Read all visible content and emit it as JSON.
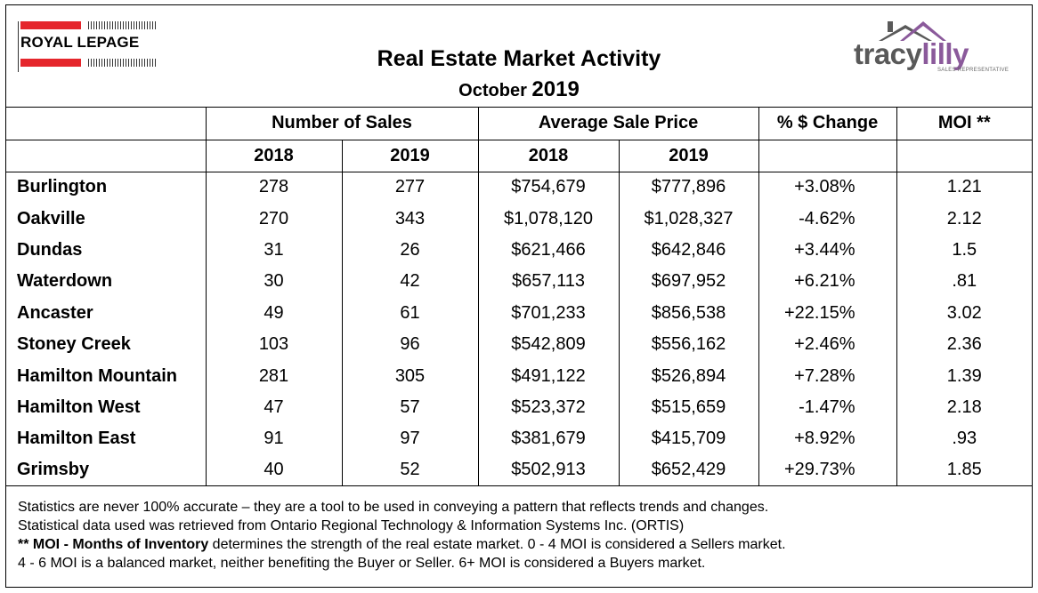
{
  "header": {
    "title": "Real Estate Market Activity",
    "month": "October",
    "year": "2019"
  },
  "logos": {
    "royal_lepage": {
      "text": "ROYAL LEPAGE",
      "color": "#e5262c"
    },
    "tracylilly": {
      "name_part1": "tracy",
      "name_part2": "lilly",
      "tagline": "SALES REPRESENTATIVE",
      "accent": "#8b5a9b",
      "gray": "#595959"
    }
  },
  "table": {
    "group_headers": {
      "sales": "Number of Sales",
      "price": "Average Sale Price",
      "change": "% $ Change",
      "moi": "MOI **"
    },
    "year_headers": [
      "2018",
      "2019",
      "2018",
      "2019"
    ],
    "rows": [
      {
        "area": "Burlington",
        "sales_2018": "278",
        "sales_2019": "277",
        "price_2018": "$754,679",
        "price_2019": "$777,896",
        "change": "+3.08%",
        "moi": "1.21"
      },
      {
        "area": "Oakville",
        "sales_2018": "270",
        "sales_2019": "343",
        "price_2018": "$1,078,120",
        "price_2019": "$1,028,327",
        "change": "-4.62%",
        "moi": "2.12"
      },
      {
        "area": "Dundas",
        "sales_2018": "31",
        "sales_2019": "26",
        "price_2018": "$621,466",
        "price_2019": "$642,846",
        "change": "+3.44%",
        "moi": "1.5"
      },
      {
        "area": "Waterdown",
        "sales_2018": "30",
        "sales_2019": "42",
        "price_2018": "$657,113",
        "price_2019": "$697,952",
        "change": "+6.21%",
        "moi": ".81"
      },
      {
        "area": "Ancaster",
        "sales_2018": "49",
        "sales_2019": "61",
        "price_2018": "$701,233",
        "price_2019": "$856,538",
        "change": "+22.15%",
        "moi": "3.02"
      },
      {
        "area": "Stoney Creek",
        "sales_2018": "103",
        "sales_2019": "96",
        "price_2018": "$542,809",
        "price_2019": "$556,162",
        "change": "+2.46%",
        "moi": "2.36"
      },
      {
        "area": "Hamilton Mountain",
        "sales_2018": "281",
        "sales_2019": "305",
        "price_2018": "$491,122",
        "price_2019": "$526,894",
        "change": "+7.28%",
        "moi": "1.39"
      },
      {
        "area": "Hamilton West",
        "sales_2018": "47",
        "sales_2019": "57",
        "price_2018": "$523,372",
        "price_2019": "$515,659",
        "change": "-1.47%",
        "moi": "2.18"
      },
      {
        "area": "Hamilton East",
        "sales_2018": "91",
        "sales_2019": "97",
        "price_2018": "$381,679",
        "price_2019": "$415,709",
        "change": "+8.92%",
        "moi": ".93"
      },
      {
        "area": "Grimsby",
        "sales_2018": "40",
        "sales_2019": "52",
        "price_2018": "$502,913",
        "price_2019": "$652,429",
        "change": "+29.73%",
        "moi": "1.85"
      }
    ]
  },
  "notes": {
    "line1": "Statistics are never 100% accurate – they are a tool to be used in conveying a pattern that reflects trends and changes.",
    "line2": "Statistical data used was retrieved from Ontario Regional Technology & Information Systems Inc. (ORTIS)",
    "line3_bold": "** MOI - Months of Inventory",
    "line3_rest": " determines the strength of the real estate market. 0 - 4 MOI is considered a Sellers market.",
    "line4": "4 - 6 MOI is a balanced market, neither benefiting the Buyer or Seller. 6+ MOI is considered a Buyers market."
  }
}
